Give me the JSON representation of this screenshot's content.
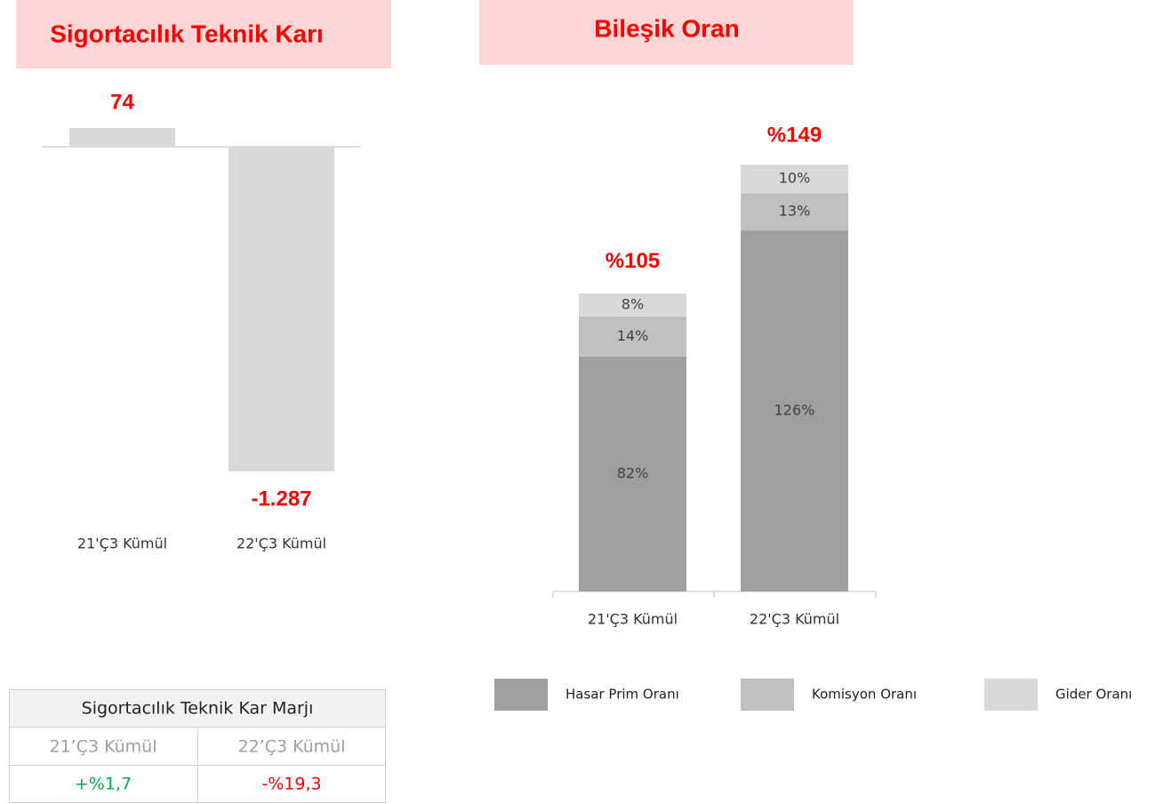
{
  "chart_data": [
    {
      "type": "bar",
      "title": "Sigortacılık Teknik Karı",
      "categories": [
        "21'Ç3 Kümül",
        "22'Ç3 Kümül"
      ],
      "values": [
        74,
        -1287
      ],
      "value_labels": [
        "74",
        "-1.287"
      ],
      "color": "#d9d9d9"
    },
    {
      "type": "stacked_bar",
      "title": "Bileşik Oran",
      "categories": [
        "21'Ç3 Kümül",
        "22'Ç3 Kümül"
      ],
      "series": [
        {
          "name": "Hasar Prim Oranı",
          "color": "#9f9f9f",
          "values": [
            82,
            126
          ],
          "value_labels": [
            "82%",
            "126%"
          ]
        },
        {
          "name": "Komisyon Oranı",
          "color": "#bfbfbf",
          "values": [
            14,
            13
          ],
          "value_labels": [
            "14%",
            "13%"
          ]
        },
        {
          "name": "Gider Oranı",
          "color": "#d9d9d9",
          "values": [
            8,
            10
          ],
          "value_labels": [
            "8%",
            "10%"
          ]
        }
      ],
      "totals": [
        105,
        149
      ],
      "total_labels": [
        "%105",
        "%149"
      ]
    }
  ],
  "table": {
    "title": "Sigortacılık Teknik Kar Marjı",
    "header": [
      "21’Ç3 Kümül",
      "22’Ç3 Kümül"
    ],
    "row": [
      "+%1,7",
      "-%19,3"
    ]
  }
}
